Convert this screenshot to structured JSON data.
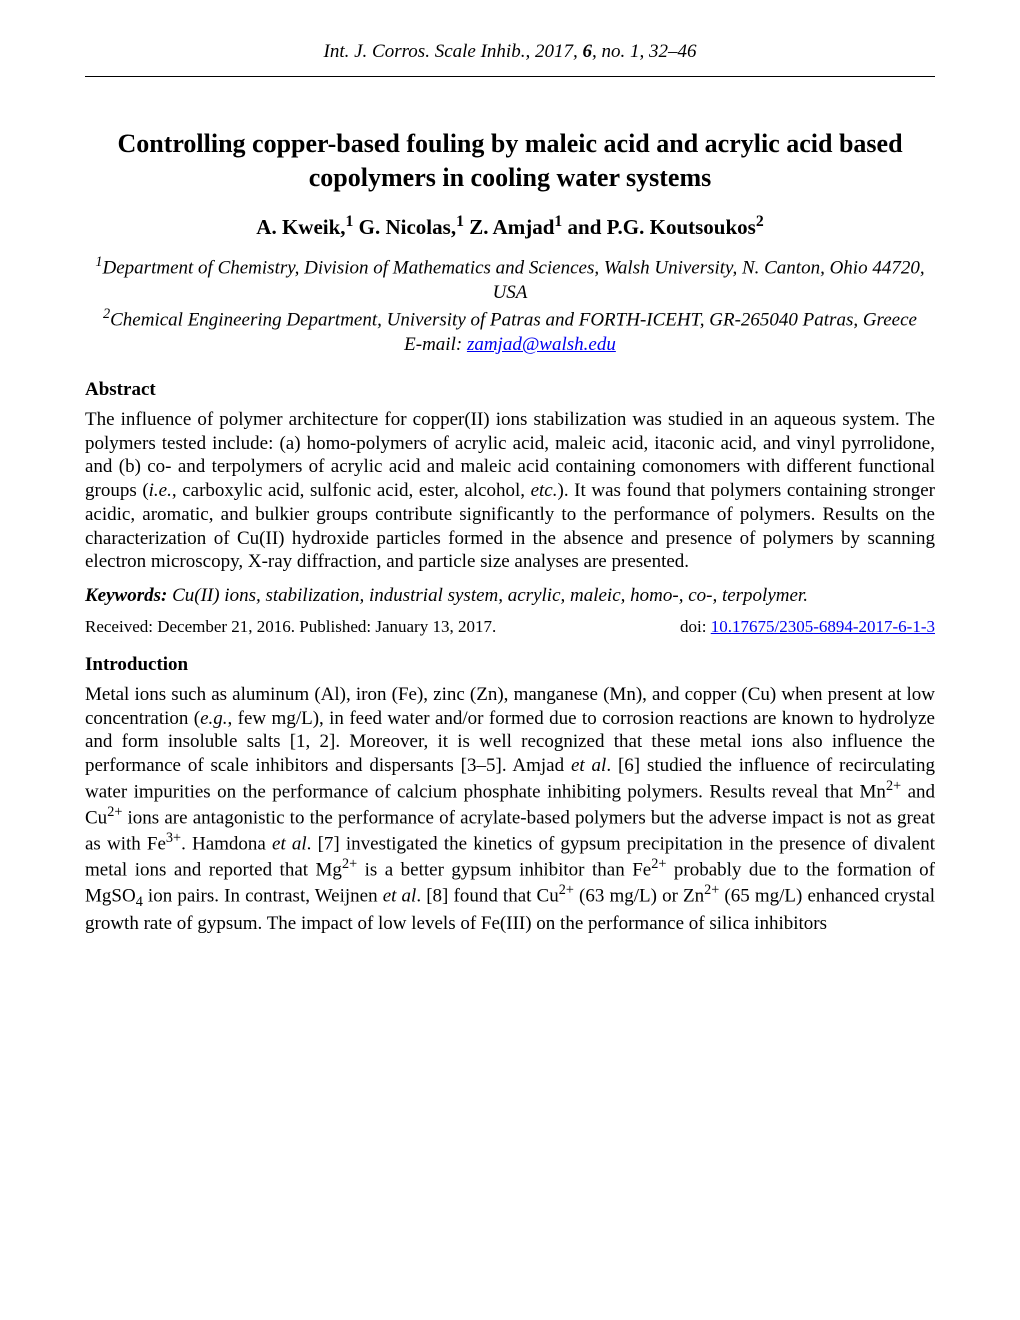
{
  "journal": {
    "name": "Int. J. Corros. Scale Inhib.",
    "year": "2017",
    "volume": "6",
    "issue": "no. 1",
    "pages": "32–46"
  },
  "title": "Controlling copper-based fouling by maleic acid and acrylic acid based copolymers in cooling water systems",
  "authors": {
    "a1": "A. Kweik,",
    "a2": " G. Nicolas,",
    "a3": " Z. Amjad",
    "a4": " and P.G. Koutsoukos"
  },
  "affiliations": {
    "aff1_prefix": "1",
    "aff1": "Department of Chemistry, Division of Mathematics and Sciences, Walsh University, N. Canton, Ohio 44720, USA",
    "aff2_prefix": "2",
    "aff2": "Chemical Engineering Department, University of Patras and FORTH-ICEHT, GR-265040 Patras, Greece",
    "email_label": "E-mail: ",
    "email": "zamjad@walsh.edu"
  },
  "abstract": {
    "heading": "Abstract",
    "p1": "The influence of polymer architecture for copper(II) ions stabilization was studied in an aqueous system. The polymers tested include: (a) homo-polymers of acrylic acid, maleic acid, itaconic acid, and vinyl pyrrolidone, and (b) co- and terpolymers of acrylic acid and maleic acid containing comonomers with different functional groups (",
    "ie": "i.e.",
    "p2": ", carboxylic acid, sulfonic acid, ester, alcohol, ",
    "etc": "etc.",
    "p3": "). It was found that polymers containing stronger acidic, aromatic, and bulkier groups contribute significantly to the performance of polymers. Results on the characterization of Cu(II) hydroxide particles formed in the absence and presence of polymers by scanning electron microscopy, X-ray diffraction, and particle size analyses are presented."
  },
  "keywords": {
    "label": "Keywords:",
    "text": " Cu(II) ions, stabilization, industrial system, acrylic, maleic, homo-, co-, terpolymer."
  },
  "dates": {
    "received_published": "Received: December 21, 2016. Published: January 13, 2017.",
    "doi_label": "doi: ",
    "doi": "10.17675/2305-6894-2017-6-1-3"
  },
  "introduction": {
    "heading": "Introduction",
    "t1": "Metal ions such as aluminum (Al), iron (Fe), zinc (Zn), manganese (Mn), and copper (Cu) when present at low concentration (",
    "eg": "e.g.",
    "t2": ", few mg/L), in feed water and/or formed due to corrosion reactions are known to hydrolyze and form insoluble salts [1, 2]. Moreover, it is well recognized that these metal ions also influence the performance of scale inhibitors and dispersants [3–5]. Amjad ",
    "etal1": "et al",
    "t3": ". [6] studied the influence of recirculating water impurities on the performance of calcium phosphate inhibiting polymers. Results reveal that Mn",
    "t4": " and Cu",
    "t5": " ions are antagonistic to the performance of acrylate-based polymers but the adverse impact is not as great as with Fe",
    "t6": ". Hamdona ",
    "etal2": "et al",
    "t7": ". [7] investigated the kinetics of gypsum precipitation in the presence of divalent metal ions and reported that Mg",
    "t8": " is a better gypsum inhibitor than Fe",
    "t9": " probably due to the formation of MgSO",
    "t10": " ion pairs. In contrast, Weijnen ",
    "etal3": "et al",
    "t11": ". [8] found that Cu",
    "t12": " (63 mg/L) or Zn",
    "t13": " (65 mg/L) enhanced crystal growth rate of gypsum. The impact of low levels of Fe(III) on the performance of silica inhibitors"
  }
}
